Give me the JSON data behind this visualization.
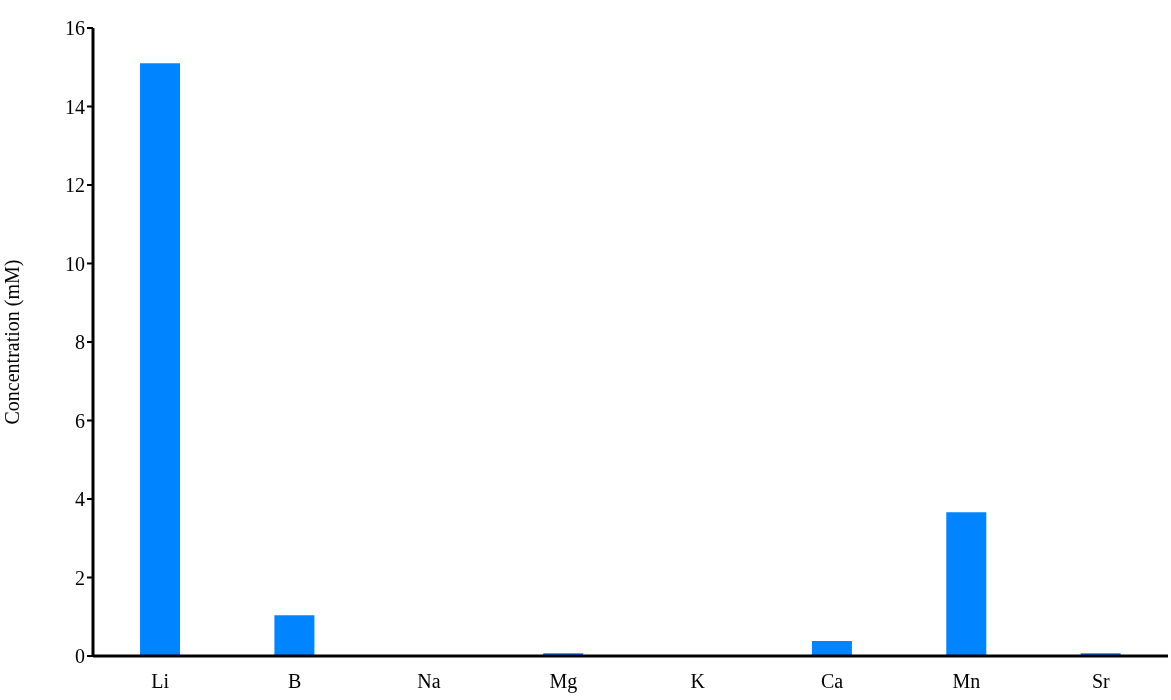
{
  "chart_data": {
    "type": "bar",
    "ylabel": "Concentration (mM)",
    "categories": [
      "Li",
      "B",
      "Na",
      "Mg",
      "K",
      "Ca",
      "Mn",
      "Sr"
    ],
    "values": [
      15.1,
      1.04,
      0,
      0.07,
      0,
      0.38,
      3.66,
      0.07
    ],
    "color": "#0084ff",
    "ylim": [
      0,
      16
    ],
    "yticks": [
      0,
      2,
      4,
      6,
      8,
      10,
      12,
      14,
      16
    ],
    "grid": false,
    "legend": false
  }
}
